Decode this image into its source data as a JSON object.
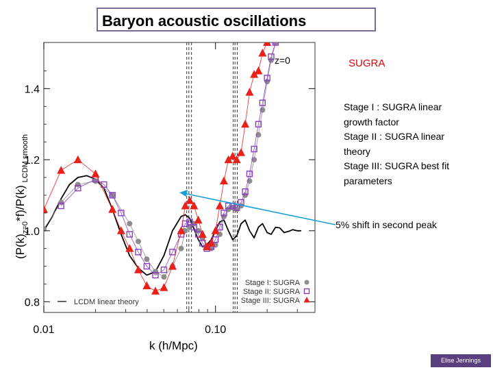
{
  "slide": {
    "title": "Baryon acoustic oscillations",
    "sugra_label": "SUGRA",
    "stage_lines": [
      "Stage I : SUGRA linear",
      "growth factor",
      "Stage II : SUGRA linear",
      "theory",
      "Stage III: SUGRA best fit",
      "parameters"
    ],
    "annotation": "5% shift in second peak",
    "credit": "Elise Jennings",
    "colors": {
      "title_border": "#7b6c95",
      "arrow": "#1aa0d8",
      "credit_bg": "#5a3f7e"
    }
  },
  "chart_data": {
    "type": "line",
    "ylabel": "(P(k)z=0*f)/P(k) LCDM smooth",
    "ylabel_parts": {
      "main": "(P(k)",
      "sub1": "z=0",
      "mid": "*f)/P(k)",
      "sub2": "LCDM smooth"
    },
    "xlabel": "k (h/Mpc)",
    "x_scale": "log",
    "xlim": [
      0.01,
      0.38
    ],
    "ylim": [
      0.77,
      1.53
    ],
    "x_ticks": [
      {
        "value": 0.01,
        "label": "0.01"
      },
      {
        "value": 0.1,
        "label": "0.10"
      }
    ],
    "y_ticks": [
      {
        "value": 0.8,
        "label": "0.8"
      },
      {
        "value": 1.0,
        "label": "1.0"
      },
      {
        "value": 1.2,
        "label": "1.2"
      },
      {
        "value": 1.4,
        "label": "1.4"
      }
    ],
    "panel_label": "z=0",
    "vertical_lines": [
      0.068,
      0.07,
      0.0725,
      0.127,
      0.13,
      0.134
    ],
    "series": [
      {
        "name": "LCDM linear theory",
        "style": "line",
        "color": "#000000",
        "x": [
          0.01,
          0.0112,
          0.0126,
          0.0141,
          0.0158,
          0.0178,
          0.02,
          0.0224,
          0.0251,
          0.0282,
          0.0316,
          0.0355,
          0.0398,
          0.0447,
          0.0501,
          0.0562,
          0.0631,
          0.0667,
          0.0708,
          0.075,
          0.0794,
          0.0841,
          0.0891,
          0.0944,
          0.1,
          0.106,
          0.112,
          0.119,
          0.126,
          0.133,
          0.141,
          0.149,
          0.158,
          0.168,
          0.178,
          0.188,
          0.2,
          0.211,
          0.224,
          0.237,
          0.251,
          0.266,
          0.282,
          0.299,
          0.316
        ],
        "y": [
          1.0,
          1.04,
          1.09,
          1.13,
          1.15,
          1.155,
          1.145,
          1.12,
          1.06,
          0.99,
          0.93,
          0.895,
          0.875,
          0.885,
          0.93,
          1.0,
          1.04,
          1.045,
          1.035,
          1.005,
          0.975,
          0.955,
          0.96,
          0.975,
          1.0,
          1.025,
          1.03,
          1.0,
          0.975,
          0.985,
          1.02,
          1.03,
          1.0,
          0.98,
          1.01,
          1.02,
          0.995,
          0.99,
          1.01,
          1.008,
          0.995,
          0.998,
          1.003,
          1.0,
          1.0
        ]
      },
      {
        "name": "Stage I: SUGRA",
        "style": "markers",
        "marker": "circle",
        "color": "#8c8c8c",
        "x": [
          0.01,
          0.0126,
          0.0158,
          0.02,
          0.0251,
          0.0316,
          0.0355,
          0.0398,
          0.0447,
          0.0501,
          0.0562,
          0.0631,
          0.0667,
          0.0708,
          0.075,
          0.0794,
          0.0841,
          0.0891,
          0.0944,
          0.1,
          0.106,
          0.112,
          0.119,
          0.126,
          0.133,
          0.141,
          0.149,
          0.158,
          0.168,
          0.178,
          0.188,
          0.2,
          0.211,
          0.224
        ],
        "y": [
          1.005,
          1.08,
          1.13,
          1.14,
          1.1,
          1.02,
          0.97,
          0.92,
          0.885,
          0.87,
          0.9,
          0.95,
          1.0,
          1.01,
          1.02,
          1.0,
          0.98,
          0.955,
          0.95,
          0.96,
          0.99,
          1.04,
          1.06,
          1.065,
          1.06,
          1.07,
          1.1,
          1.14,
          1.2,
          1.27,
          1.34,
          1.42,
          1.48,
          1.53
        ]
      },
      {
        "name": "Stage II: SUGRA",
        "style": "markers",
        "marker": "square",
        "color": "#8a3fc0",
        "x": [
          0.0126,
          0.0158,
          0.02,
          0.0224,
          0.0251,
          0.0282,
          0.0316,
          0.0355,
          0.0398,
          0.0447,
          0.0501,
          0.0562,
          0.0631,
          0.0667,
          0.0708,
          0.075,
          0.0794,
          0.0841,
          0.0891,
          0.0944,
          0.1,
          0.106,
          0.112,
          0.119,
          0.126,
          0.133,
          0.141,
          0.149,
          0.158,
          0.168,
          0.178,
          0.188,
          0.2,
          0.211,
          0.224
        ],
        "y": [
          1.07,
          1.12,
          1.145,
          1.13,
          1.1,
          1.05,
          0.99,
          0.94,
          0.9,
          0.875,
          0.89,
          0.94,
          0.99,
          1.02,
          1.025,
          1.01,
          0.99,
          0.965,
          0.95,
          0.955,
          0.975,
          1.01,
          1.05,
          1.07,
          1.07,
          1.065,
          1.08,
          1.11,
          1.16,
          1.23,
          1.3,
          1.36,
          1.43,
          1.49,
          1.53
        ]
      },
      {
        "name": "Stage III: SUGRA",
        "style": "markers",
        "marker": "triangle",
        "color": "#e8211a",
        "x": [
          0.01,
          0.0126,
          0.0158,
          0.02,
          0.0251,
          0.0282,
          0.0316,
          0.0355,
          0.0398,
          0.0447,
          0.0501,
          0.0562,
          0.0631,
          0.0667,
          0.0708,
          0.075,
          0.0794,
          0.0841,
          0.0891,
          0.0944,
          0.1,
          0.106,
          0.112,
          0.119,
          0.126,
          0.133,
          0.141,
          0.149,
          0.158,
          0.168,
          0.178,
          0.188,
          0.2
        ],
        "y": [
          1.06,
          1.17,
          1.2,
          1.16,
          1.06,
          1.0,
          0.95,
          0.89,
          0.845,
          0.83,
          0.84,
          0.9,
          1.0,
          1.07,
          1.085,
          1.07,
          1.03,
          0.99,
          0.955,
          0.965,
          1.0,
          1.07,
          1.14,
          1.2,
          1.21,
          1.2,
          1.22,
          1.3,
          1.39,
          1.44,
          1.45,
          1.5,
          1.53
        ]
      }
    ],
    "legend": {
      "position": "bottom-right",
      "entries": [
        {
          "label": "Stage I: SUGRA",
          "marker": "circle",
          "color": "#8c8c8c"
        },
        {
          "label": "Stage II: SUGRA",
          "marker": "square",
          "color": "#8a3fc0"
        },
        {
          "label": "Stage III: SUGRA",
          "marker": "triangle",
          "color": "#e8211a"
        }
      ],
      "line_entry": {
        "label": "LCDM linear theory",
        "position": "bottom-left"
      }
    }
  }
}
